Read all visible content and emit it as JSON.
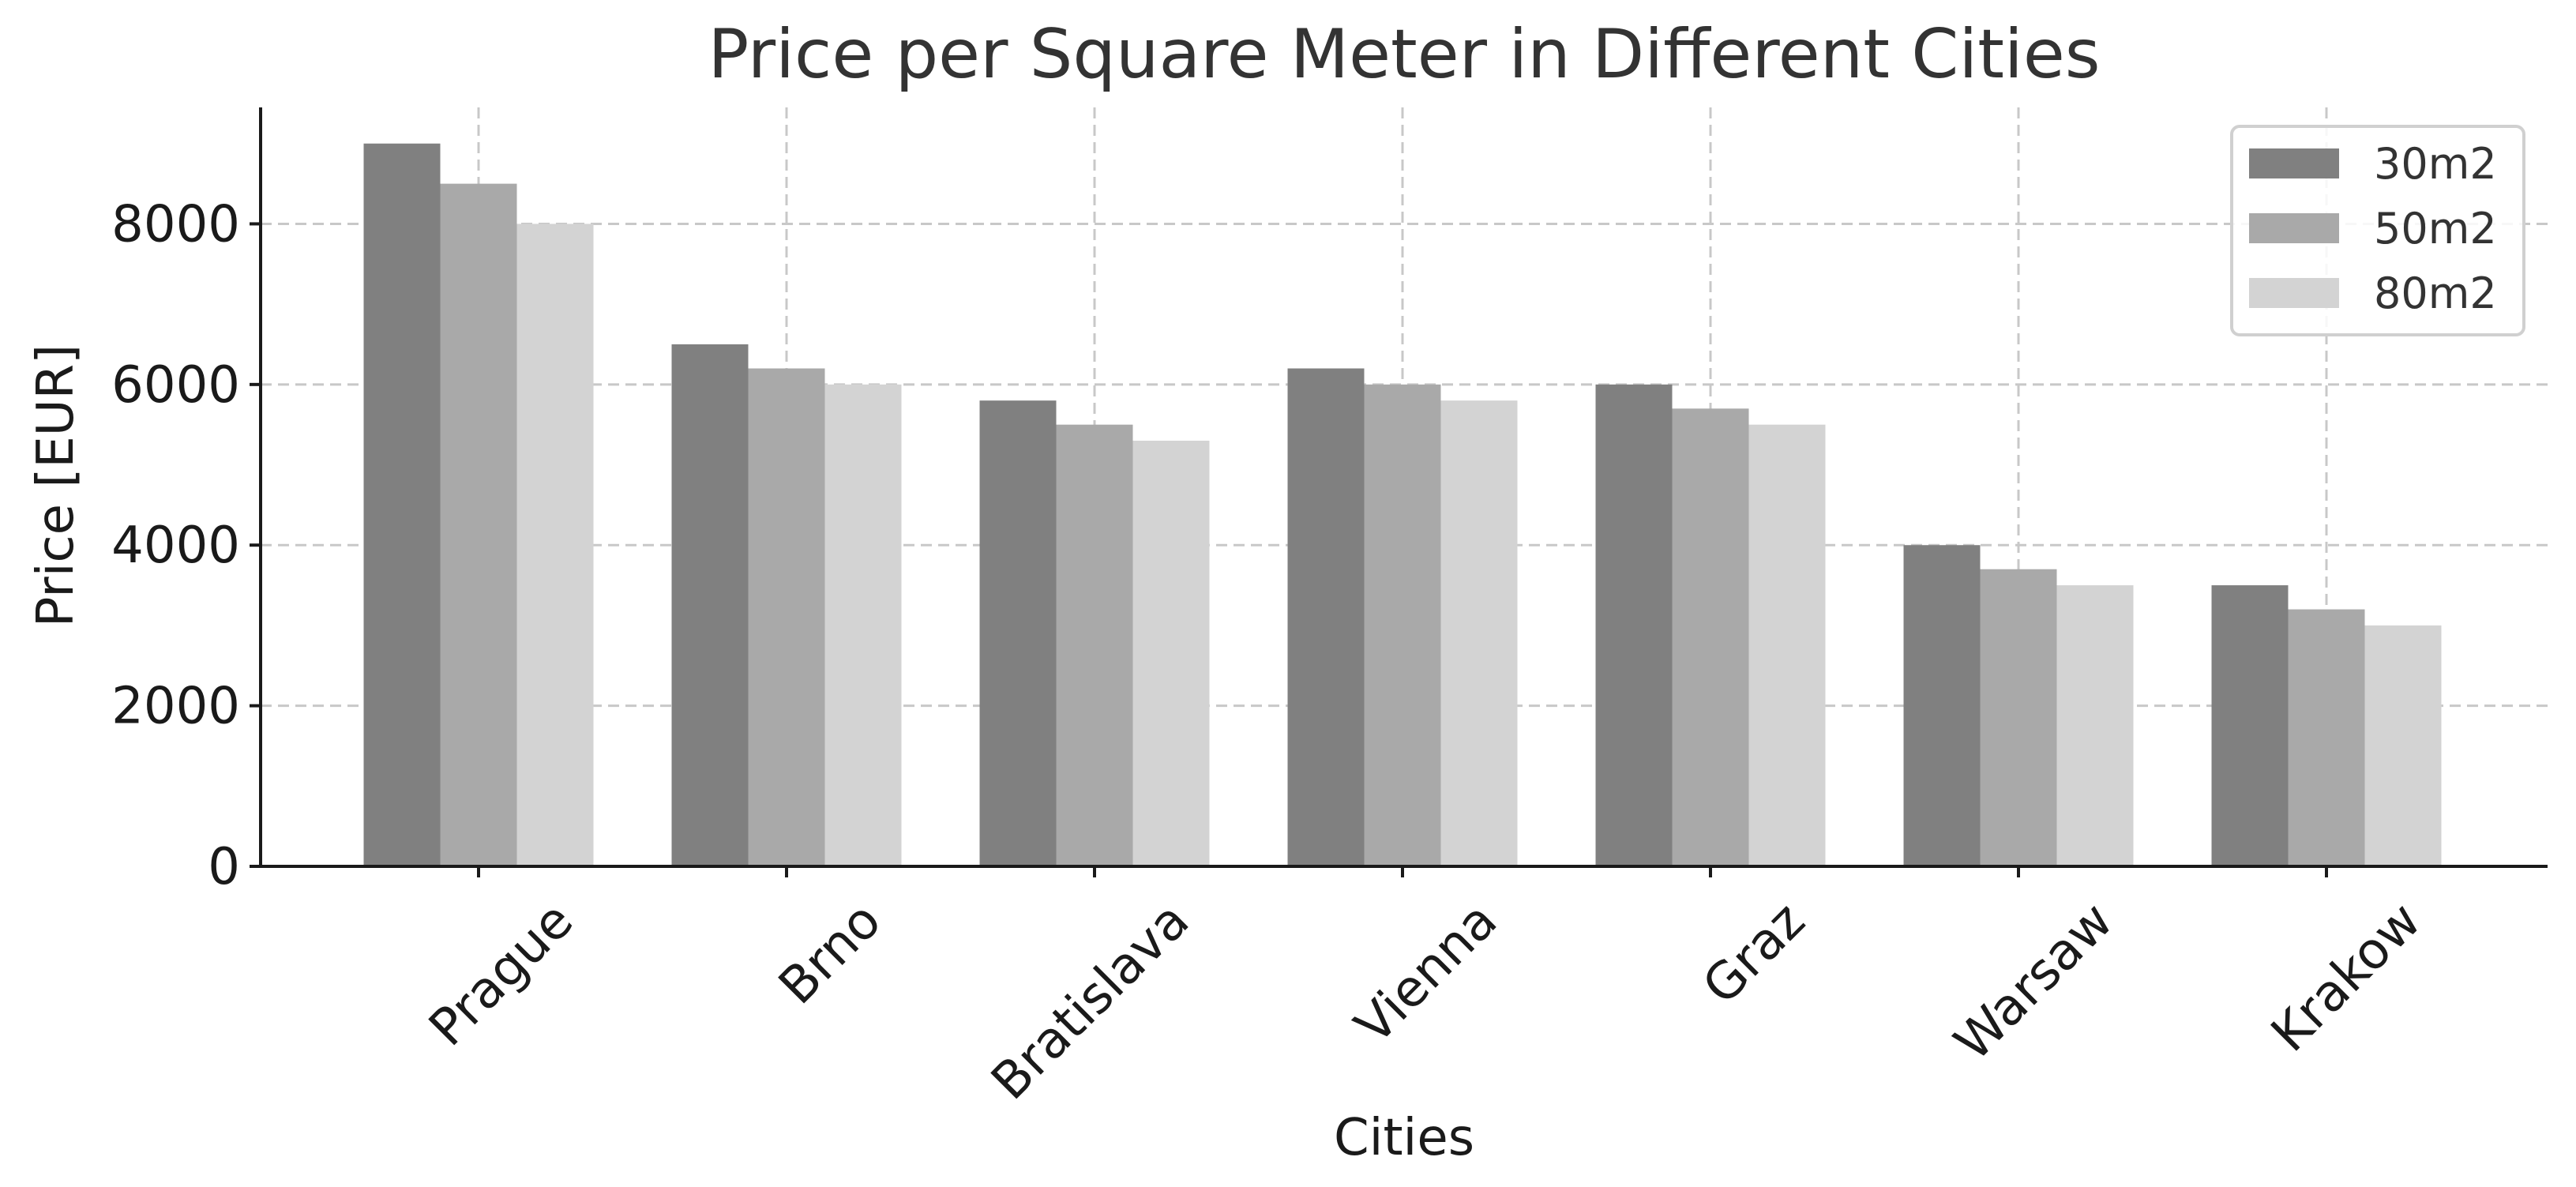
{
  "chart_data": {
    "type": "bar",
    "title": "Price per Square Meter in Different Cities",
    "xlabel": "Cities",
    "ylabel": "Price [EUR]",
    "categories": [
      "Prague",
      "Brno",
      "Bratislava",
      "Vienna",
      "Graz",
      "Warsaw",
      "Krakow"
    ],
    "series": [
      {
        "name": "30m2",
        "values": [
          9000,
          6500,
          5800,
          6200,
          6000,
          4000,
          3500
        ],
        "color": "#808080"
      },
      {
        "name": "50m2",
        "values": [
          8500,
          6200,
          5500,
          6000,
          5700,
          3700,
          3200
        ],
        "color": "#a9a9a9"
      },
      {
        "name": "80m2",
        "values": [
          8000,
          6000,
          5300,
          5800,
          5500,
          3500,
          3000
        ],
        "color": "#d3d3d3"
      }
    ],
    "ylim": [
      0,
      9450
    ],
    "yticks": [
      0,
      2000,
      4000,
      6000,
      8000
    ],
    "grid": true,
    "legend_position": "top-right"
  }
}
